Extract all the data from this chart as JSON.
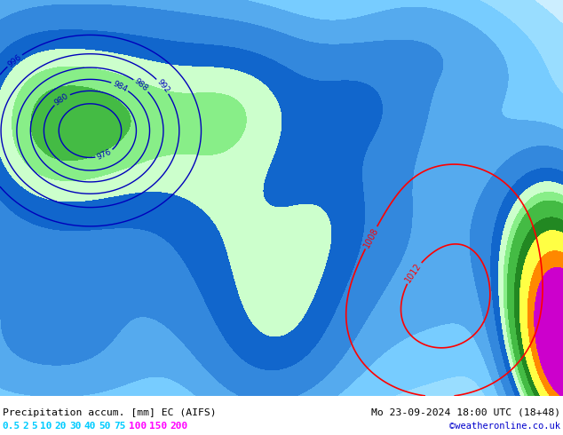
{
  "title_left": "Precipitation accum. [mm] EC (AIFS)",
  "title_right": "Mo 23-09-2024 18:00 UTC (18+48)",
  "credit": "©weatheronline.co.uk",
  "label_strs": [
    "0.5",
    "2",
    "5",
    "10",
    "20",
    "30",
    "40",
    "50",
    "75",
    "100",
    "150",
    "200"
  ],
  "label_colors_cyan": [
    "0.5",
    "2",
    "5",
    "10",
    "20",
    "30",
    "40",
    "50",
    "75"
  ],
  "label_colors_magenta": [
    "100",
    "150",
    "200"
  ],
  "precip_levels": [
    0,
    0.5,
    2,
    5,
    10,
    20,
    30,
    40,
    50,
    75,
    100,
    150,
    200,
    500
  ],
  "precip_colors": [
    "#cceeff",
    "#99ddff",
    "#77ccff",
    "#55aaee",
    "#3388dd",
    "#1166cc",
    "#ccffcc",
    "#88ee88",
    "#44bb44",
    "#228822",
    "#ffff44",
    "#ff8800",
    "#cc00cc"
  ],
  "bg_color": "#ffffff",
  "sea_color": "#aaddee",
  "fig_width": 6.34,
  "fig_height": 4.9,
  "dpi": 100
}
